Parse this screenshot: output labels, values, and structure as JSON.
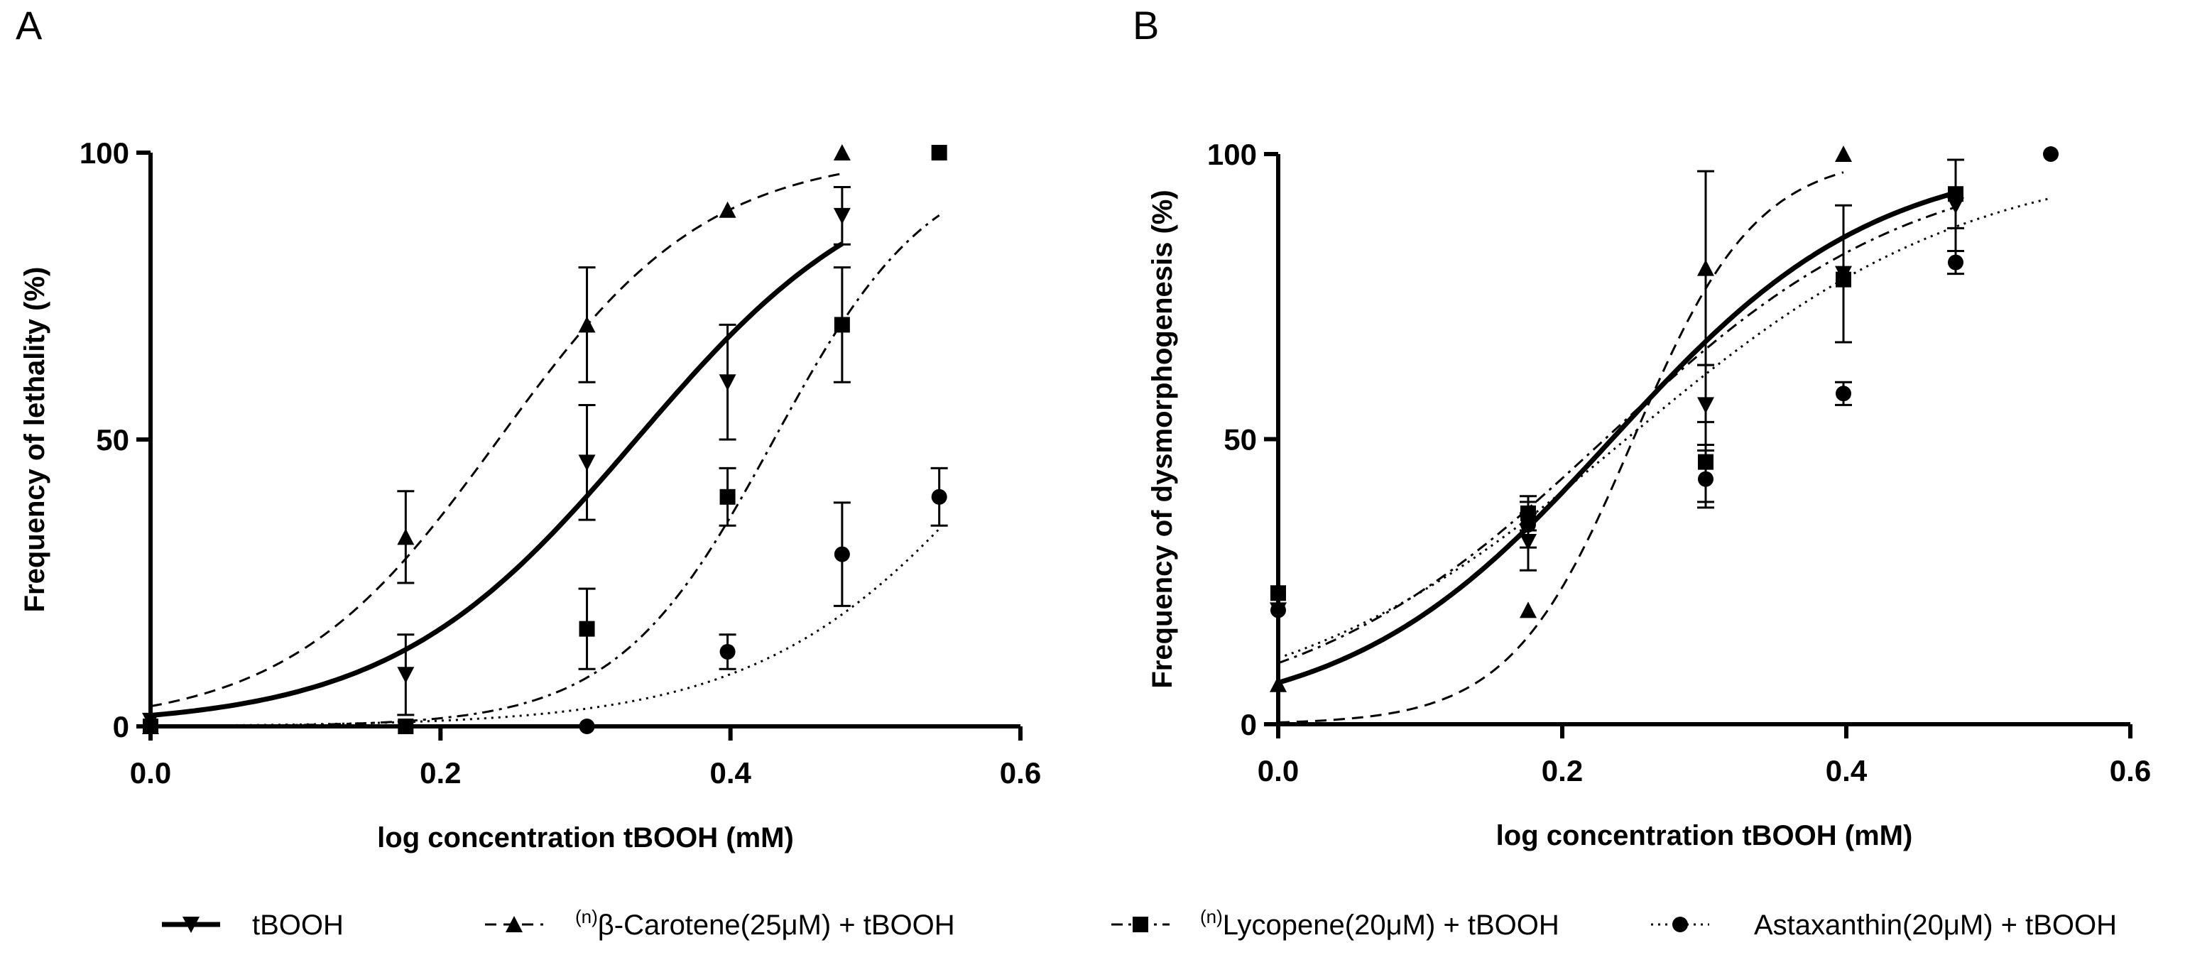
{
  "chart_data": [
    {
      "panel_letter": "A",
      "type": "scatter",
      "xlabel": "log concentration tBOOH (mM)",
      "ylabel": "Frequency of lethality (%)",
      "xlim": [
        0,
        0.6
      ],
      "ylim": [
        0,
        100
      ],
      "xticks": [
        0,
        0.2,
        0.4,
        0.6
      ],
      "xtick_labels": [
        "0.0",
        "0.2",
        "0.4",
        "0.6"
      ],
      "yticks": [
        0,
        50,
        100
      ],
      "ytick_labels": [
        "0",
        "50",
        "100"
      ],
      "series": [
        {
          "key": "tbooh",
          "marker": "triangle-down",
          "dash": "solid",
          "x": [
            0.0,
            0.176,
            0.301,
            0.398,
            0.477
          ],
          "y": [
            1,
            9,
            46,
            60,
            89
          ],
          "err": [
            0,
            7,
            10,
            10,
            5
          ],
          "fit": {
            "bottom": 0,
            "top": 100,
            "logec50": 0.335,
            "hill": 5.1
          }
        },
        {
          "key": "beta",
          "marker": "triangle-up",
          "dash": "dashed",
          "x": [
            0.0,
            0.176,
            0.301,
            0.398,
            0.477
          ],
          "y": [
            0,
            33,
            70,
            90,
            100
          ],
          "err": [
            0,
            8,
            10,
            0,
            0
          ],
          "fit": {
            "bottom": 0,
            "top": 100,
            "logec50": 0.24,
            "hill": 6.0,
            "x_end": 0.477
          }
        },
        {
          "key": "lyco",
          "marker": "square",
          "dash": "dashdot",
          "x": [
            0.0,
            0.176,
            0.301,
            0.398,
            0.477,
            0.544
          ],
          "y": [
            0,
            0,
            17,
            40,
            70,
            100
          ],
          "err": [
            0,
            0,
            7,
            5,
            10,
            0
          ],
          "fit": {
            "bottom": 0,
            "top": 100,
            "logec50": 0.43,
            "hill": 8.0
          }
        },
        {
          "key": "asta",
          "marker": "circle",
          "dash": "dotted",
          "x": [
            0.0,
            0.301,
            0.398,
            0.477,
            0.544
          ],
          "y": [
            0,
            0,
            13,
            30,
            40
          ],
          "err": [
            0,
            0,
            3,
            9,
            5
          ],
          "fit": {
            "bottom": 0,
            "top": 100,
            "logec50": 0.6,
            "hill": 5.0
          }
        }
      ]
    },
    {
      "panel_letter": "B",
      "type": "scatter",
      "xlabel": "log concentration tBOOH (mM)",
      "ylabel": "Frequency of dysmorphogenesis (%)",
      "xlim": [
        0,
        0.6
      ],
      "ylim": [
        0,
        100
      ],
      "xticks": [
        0,
        0.2,
        0.4,
        0.6
      ],
      "xtick_labels": [
        "0.0",
        "0.2",
        "0.4",
        "0.6"
      ],
      "yticks": [
        0,
        50,
        100
      ],
      "ytick_labels": [
        "0",
        "50",
        "100"
      ],
      "series": [
        {
          "key": "tbooh",
          "marker": "triangle-down",
          "dash": "solid",
          "x": [
            0.0,
            0.176,
            0.301,
            0.398,
            0.477
          ],
          "y": [
            20,
            32,
            56,
            79,
            91
          ],
          "err": [
            0,
            5,
            7,
            12,
            8
          ],
          "fit": {
            "bottom": 0,
            "top": 100,
            "logec50": 0.235,
            "hill": 4.7
          }
        },
        {
          "key": "beta",
          "marker": "triangle-up",
          "dash": "dashed",
          "x": [
            0.0,
            0.176,
            0.301,
            0.398
          ],
          "y": [
            7,
            20,
            80,
            100
          ],
          "err": [
            0,
            0,
            17,
            0
          ],
          "fit": {
            "bottom": 0,
            "top": 100,
            "logec50": 0.25,
            "hill": 10.0,
            "x_end": 0.398
          }
        },
        {
          "key": "lyco",
          "marker": "square",
          "dash": "dashdot",
          "x": [
            0.0,
            0.176,
            0.301,
            0.398,
            0.477
          ],
          "y": [
            23,
            37,
            46,
            78,
            93
          ],
          "err": [
            0,
            3,
            7,
            0,
            6
          ],
          "fit": {
            "bottom": 0,
            "top": 100,
            "logec50": 0.23,
            "hill": 4.0
          }
        },
        {
          "key": "asta",
          "marker": "circle",
          "dash": "dotted",
          "x": [
            0.0,
            0.176,
            0.301,
            0.398,
            0.477,
            0.544
          ],
          "y": [
            20,
            35,
            43,
            58,
            81,
            100
          ],
          "err": [
            0,
            4,
            5,
            2,
            2,
            0
          ],
          "fit": {
            "bottom": 0,
            "top": 100,
            "logec50": 0.245,
            "hill": 3.6
          }
        }
      ]
    }
  ],
  "legend": [
    {
      "key": "tbooh",
      "prefix": "",
      "text": "tBOOH"
    },
    {
      "key": "beta",
      "prefix": "(n)",
      "text": "β-Carotene(25μM) + tBOOH"
    },
    {
      "key": "lyco",
      "prefix": "(n)",
      "text": "Lycopene(20μM) + tBOOH"
    },
    {
      "key": "asta",
      "prefix": "",
      "text": "Astaxanthin(20μM) + tBOOH"
    }
  ]
}
